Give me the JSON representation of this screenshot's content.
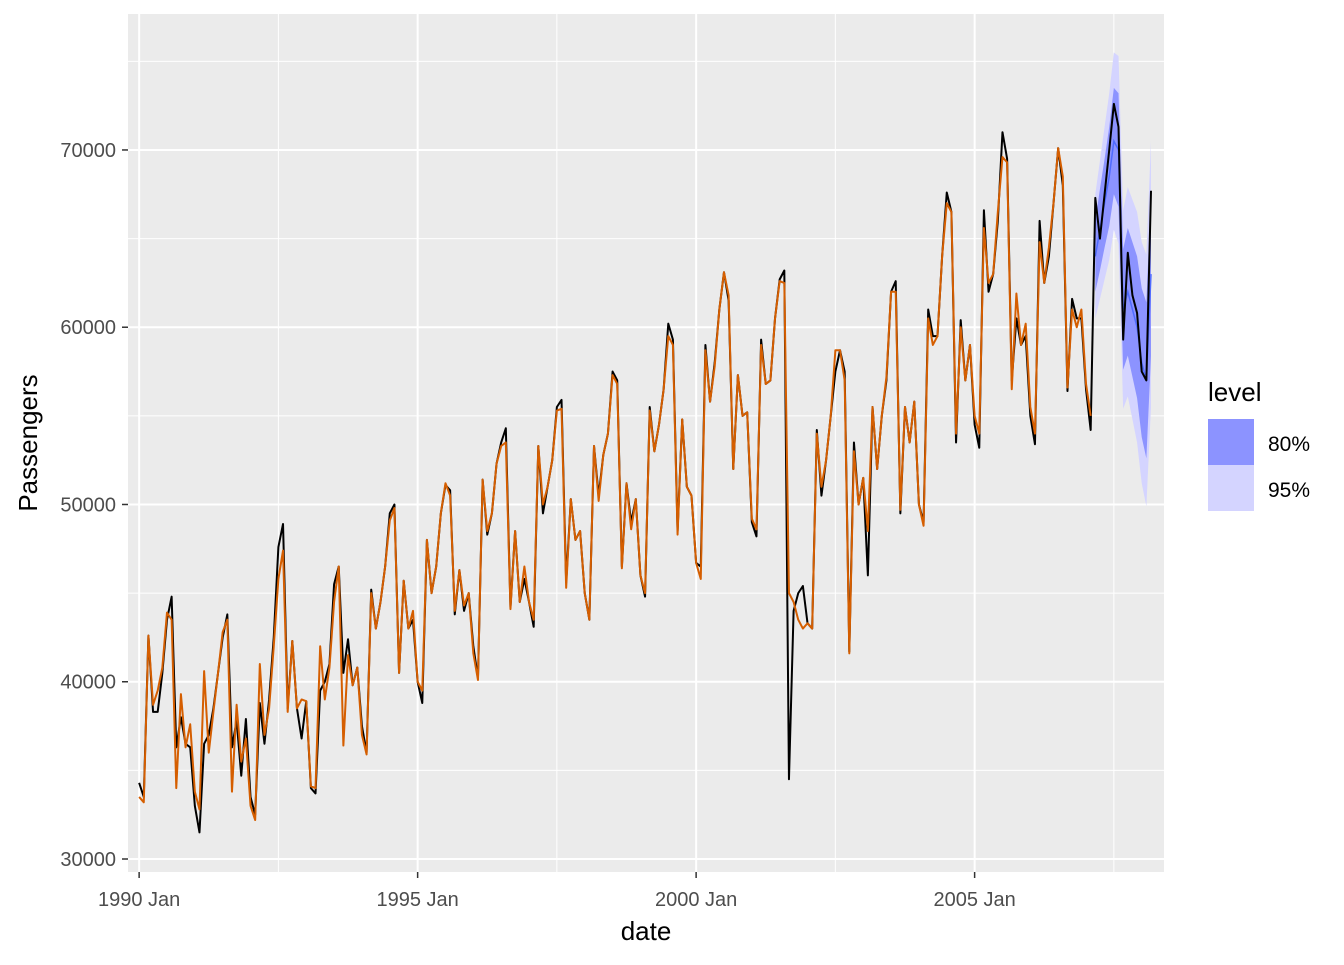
{
  "chart_data": {
    "type": "line",
    "title": "",
    "xlabel": "date",
    "ylabel": "Passengers",
    "x_start": "1990 Jan",
    "x_frequency": "monthly",
    "xlim_years": [
      1989.8,
      2008.4
    ],
    "ylim": [
      29267,
      77670
    ],
    "x_ticks": [
      {
        "year": 1990,
        "label": "1990 Jan"
      },
      {
        "year": 1995,
        "label": "1995 Jan"
      },
      {
        "year": 2000,
        "label": "2000 Jan"
      },
      {
        "year": 2005,
        "label": "2005 Jan"
      }
    ],
    "y_ticks": [
      {
        "value": 30000,
        "label": "30000"
      },
      {
        "value": 40000,
        "label": "40000"
      },
      {
        "value": 50000,
        "label": "50000"
      },
      {
        "value": 60000,
        "label": "60000"
      },
      {
        "value": 70000,
        "label": "70000"
      }
    ],
    "grid": true,
    "series": [
      {
        "name": "actual",
        "color": "#000000",
        "start": "1990 Jan",
        "values": [
          34300,
          33500,
          42600,
          38300,
          38300,
          40500,
          43500,
          44800,
          36300,
          38000,
          36500,
          36300,
          33000,
          31500,
          36500,
          37000,
          38500,
          40500,
          42500,
          43800,
          36300,
          37800,
          34700,
          37900,
          33500,
          32500,
          38800,
          36500,
          39000,
          42500,
          47600,
          48900,
          38500,
          42300,
          38500,
          36800,
          38900,
          34000,
          33700,
          39500,
          40000,
          41000,
          45500,
          46500,
          40500,
          42400,
          39800,
          40800,
          37500,
          36000,
          45200,
          43000,
          44500,
          46500,
          49500,
          50000,
          40500,
          45700,
          43000,
          43500,
          40000,
          38800,
          48000,
          45000,
          46500,
          49500,
          51100,
          50800,
          43800,
          46300,
          44000,
          45000,
          42000,
          40200,
          51400,
          48300,
          49500,
          52300,
          53500,
          54300,
          44200,
          48500,
          44500,
          45800,
          44500,
          43100,
          53300,
          49500,
          51000,
          52500,
          55500,
          55900,
          45600,
          50300,
          48000,
          48500,
          45000,
          43500,
          53300,
          50500,
          52800,
          54000,
          57500,
          57000,
          46500,
          51200,
          49000,
          50300,
          46000,
          44800,
          55500,
          53000,
          54500,
          56500,
          60200,
          59300,
          48500,
          54800,
          51000,
          50500,
          46700,
          46500,
          59000,
          55800,
          58000,
          61000,
          63100,
          61500,
          52000,
          57300,
          55000,
          55200,
          49000,
          48200,
          59300,
          56800,
          57000,
          60500,
          62700,
          63200,
          34500,
          44000,
          45000,
          45400,
          43300,
          43000,
          54200,
          50500,
          52500,
          55000,
          57500,
          58700,
          57500,
          41700,
          53500,
          50000,
          51500,
          46000,
          55500,
          52000,
          55000,
          57000,
          62000,
          62600,
          49500,
          55500,
          53500,
          55800,
          50000,
          49000,
          61000,
          59500,
          59500,
          64000,
          67600,
          66500,
          53500,
          60400,
          57000,
          59000,
          54500,
          53200,
          66600,
          62000,
          63000,
          66000,
          71000,
          69500,
          57000,
          60500,
          59000,
          59500,
          55000,
          53400,
          66000,
          62500,
          64000,
          67000,
          70100,
          68000,
          56400,
          61600,
          60500,
          60500,
          56500,
          54200,
          67300,
          65000,
          67500,
          70000,
          72600,
          71300,
          59300,
          64200,
          61800,
          60800,
          57500,
          57000,
          67700
        ]
      },
      {
        "name": "fitted",
        "color": "#D55E00",
        "start": "1990 Jan",
        "values": [
          33500,
          33200,
          42600,
          38700,
          39500,
          40800,
          43900,
          43500,
          34000,
          39300,
          36300,
          37600,
          33800,
          32800,
          40600,
          36000,
          38300,
          40500,
          42800,
          43500,
          33800,
          38700,
          35500,
          36800,
          33000,
          32200,
          41000,
          37000,
          38500,
          42000,
          45800,
          47400,
          38300,
          42300,
          38500,
          39000,
          38900,
          34100,
          34000,
          42000,
          39000,
          40800,
          44500,
          46500,
          36400,
          41500,
          39800,
          40800,
          37000,
          35900,
          45000,
          43000,
          44500,
          46500,
          49100,
          49800,
          40500,
          45700,
          43000,
          44000,
          40000,
          39500,
          48000,
          45000,
          46500,
          49500,
          51200,
          50500,
          44000,
          46300,
          44300,
          45000,
          41600,
          40100,
          51400,
          48500,
          49500,
          52300,
          53300,
          53500,
          44100,
          48500,
          44500,
          46500,
          44500,
          43500,
          53300,
          50000,
          51000,
          52500,
          55300,
          55400,
          45300,
          50300,
          48000,
          48500,
          45000,
          43500,
          53300,
          50200,
          52800,
          54000,
          57300,
          56800,
          46400,
          51200,
          48600,
          50300,
          46000,
          45000,
          55300,
          53000,
          54500,
          56500,
          59500,
          59000,
          48300,
          54800,
          51000,
          50500,
          46700,
          45800,
          58700,
          55800,
          57800,
          61000,
          63100,
          61800,
          52000,
          57300,
          55000,
          55200,
          49200,
          48600,
          59000,
          56800,
          57000,
          60500,
          62600,
          62500,
          45000,
          44500,
          43500,
          43000,
          43300,
          43000,
          54000,
          51000,
          52500,
          55000,
          58700,
          58700,
          57000,
          41600,
          53000,
          50000,
          51500,
          48500,
          55500,
          52000,
          55000,
          57200,
          62000,
          62000,
          49700,
          55500,
          53500,
          55800,
          50000,
          48800,
          60500,
          59000,
          59500,
          64000,
          67000,
          66500,
          54000,
          60000,
          57000,
          59000,
          55000,
          54000,
          65600,
          62500,
          63000,
          66500,
          69600,
          69300,
          56500,
          61900,
          59000,
          60200,
          55500,
          54000,
          64800,
          62500,
          64500,
          67000,
          70100,
          68500,
          56600,
          61000,
          60000,
          61000,
          56800,
          55000
        ]
      }
    ],
    "forecast": {
      "start": "2007 Mar",
      "mean": [
        64000,
        65500,
        67000,
        68500,
        70500,
        70000,
        61000,
        62000,
        61000,
        60000,
        58000,
        57000,
        63000
      ],
      "lo80": [
        62000,
        63200,
        64500,
        65700,
        67500,
        66800,
        57600,
        58400,
        57200,
        56000,
        53800,
        52600,
        58400
      ],
      "hi80": [
        66000,
        67800,
        69500,
        71300,
        73500,
        73200,
        64400,
        65600,
        64800,
        64000,
        62200,
        61400,
        67600
      ],
      "lo95": [
        60500,
        61600,
        62700,
        63800,
        65500,
        64700,
        55400,
        56100,
        54800,
        53500,
        51200,
        49900,
        55500
      ],
      "hi95": [
        67500,
        69400,
        71300,
        73200,
        75500,
        75300,
        66600,
        67900,
        67200,
        66500,
        64800,
        64100,
        70500
      ]
    },
    "legend": {
      "title": "level",
      "placement": "right",
      "items": [
        {
          "label": "80%",
          "color": "#8C93FF"
        },
        {
          "label": "95%",
          "color": "#D4D4FF"
        }
      ]
    },
    "colors": {
      "panel": "#EBEBEB",
      "grid": "#FFFFFF",
      "axis_text": "#4D4D4D"
    }
  }
}
